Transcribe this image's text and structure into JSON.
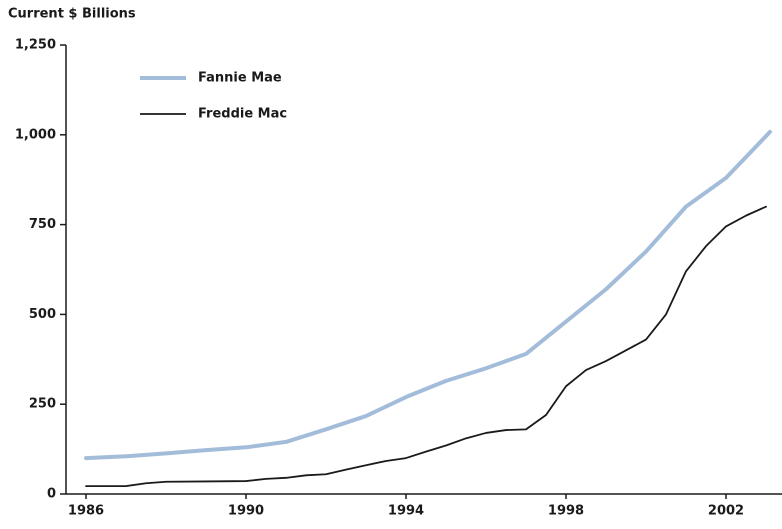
{
  "chart_data": {
    "type": "line",
    "title": "Current $ Billions",
    "xlim": [
      1985.5,
      2003.4
    ],
    "xticks": [
      1986,
      1990,
      1994,
      1998,
      2002
    ],
    "ylim": [
      0,
      1250
    ],
    "yticks": [
      0,
      250,
      500,
      750,
      {
        "value": 1000,
        "label": "1,000"
      },
      {
        "value": 1250,
        "label": "1,250"
      }
    ],
    "grid": false,
    "legend": "top-left",
    "series": [
      {
        "name": "Fannie Mae",
        "color": "#a3bcd9",
        "width": 4,
        "x": [
          1986,
          1987,
          1988,
          1989,
          1990,
          1991,
          1992,
          1993,
          1994,
          1995,
          1996,
          1997,
          1998,
          1999,
          2000,
          2001,
          2002,
          2003.1
        ],
        "values": [
          100,
          105,
          113,
          122,
          130,
          145,
          180,
          217,
          270,
          315,
          350,
          390,
          480,
          570,
          675,
          800,
          880,
          1008
        ]
      },
      {
        "name": "Freddie Mac",
        "color": "#1a1a1a",
        "width": 1.8,
        "x": [
          1986,
          1987,
          1987.5,
          1988,
          1989,
          1990,
          1990.5,
          1991,
          1991.5,
          1992,
          1992.5,
          1993,
          1993.5,
          1994,
          1994.5,
          1995,
          1995.5,
          1996,
          1996.5,
          1997,
          1997.5,
          1998,
          1998.5,
          1999,
          1999.5,
          2000,
          2000.5,
          2001,
          2001.5,
          2002,
          2002.5,
          2003
        ],
        "values": [
          22,
          22,
          30,
          34,
          35,
          36,
          42,
          45,
          52,
          55,
          68,
          80,
          92,
          100,
          118,
          135,
          155,
          170,
          178,
          180,
          220,
          300,
          345,
          370,
          400,
          430,
          500,
          620,
          690,
          745,
          775,
          800
        ]
      }
    ]
  }
}
